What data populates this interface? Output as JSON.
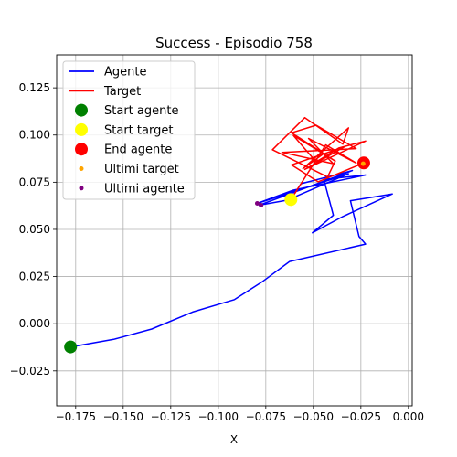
{
  "chart_data": {
    "type": "line",
    "title": "Success - Episodio 758",
    "xlabel": "X",
    "ylabel": "",
    "xlim": [
      -0.185,
      0.002
    ],
    "ylim": [
      -0.0435,
      0.1425
    ],
    "grid": true,
    "legend_position": "top-left",
    "x_ticks": [
      -0.175,
      -0.15,
      -0.125,
      -0.1,
      -0.075,
      -0.05,
      -0.025,
      0.0
    ],
    "x_tick_labels": [
      "−0.175",
      "−0.150",
      "−0.125",
      "−0.100",
      "−0.075",
      "−0.050",
      "−0.025",
      "0.000"
    ],
    "y_ticks": [
      -0.025,
      0.0,
      0.025,
      0.05,
      0.075,
      0.1,
      0.125
    ],
    "y_tick_labels": [
      "−0.025",
      "0.000",
      "0.025",
      "0.050",
      "0.075",
      "0.100",
      "0.125"
    ],
    "series": [
      {
        "name": "Agente",
        "kind": "line",
        "color": "#0000ff",
        "points": [
          [
            -0.1777,
            -0.0123
          ],
          [
            -0.155,
            -0.0083
          ],
          [
            -0.135,
            -0.0028
          ],
          [
            -0.1135,
            0.0062
          ],
          [
            -0.0915,
            0.0128
          ],
          [
            -0.0765,
            0.0225
          ],
          [
            -0.0625,
            0.033
          ],
          [
            -0.0225,
            0.0422
          ],
          [
            -0.026,
            0.0462
          ],
          [
            -0.0305,
            0.0652
          ],
          [
            -0.0085,
            0.0688
          ],
          [
            -0.0345,
            0.0568
          ],
          [
            -0.0505,
            0.0482
          ],
          [
            -0.0395,
            0.0575
          ],
          [
            -0.0445,
            0.0765
          ],
          [
            -0.0225,
            0.0788
          ],
          [
            -0.0605,
            0.0708
          ],
          [
            -0.0795,
            0.0638
          ],
          [
            -0.0315,
            0.0795
          ],
          [
            -0.0615,
            0.0665
          ],
          [
            -0.0565,
            0.0742
          ],
          [
            -0.0295,
            0.0812
          ],
          [
            -0.0785,
            0.0628
          ],
          [
            -0.0618,
            0.0658
          ]
        ]
      },
      {
        "name": "Target",
        "kind": "line",
        "color": "#ff0000",
        "points": [
          [
            -0.0618,
            0.0658
          ],
          [
            -0.0435,
            0.0948
          ],
          [
            -0.0275,
            0.0852
          ],
          [
            -0.0525,
            0.0982
          ],
          [
            -0.0395,
            0.0848
          ],
          [
            -0.0665,
            0.0908
          ],
          [
            -0.0275,
            0.0928
          ],
          [
            -0.0485,
            0.1052
          ],
          [
            -0.0615,
            0.1012
          ],
          [
            -0.0445,
            0.0902
          ],
          [
            -0.0555,
            0.0822
          ],
          [
            -0.0315,
            0.1038
          ],
          [
            -0.0345,
            0.0952
          ],
          [
            -0.0545,
            0.1092
          ],
          [
            -0.0715,
            0.0922
          ],
          [
            -0.0425,
            0.0778
          ],
          [
            -0.0385,
            0.0862
          ],
          [
            -0.0605,
            0.0998
          ],
          [
            -0.0485,
            0.0858
          ],
          [
            -0.0365,
            0.0932
          ],
          [
            -0.0225,
            0.0968
          ],
          [
            -0.0545,
            0.0818
          ],
          [
            -0.0335,
            0.0938
          ],
          [
            -0.0615,
            0.0842
          ],
          [
            -0.0475,
            0.0752
          ],
          [
            -0.0235,
            0.0852
          ]
        ]
      },
      {
        "name": "Start agente",
        "kind": "marker",
        "color": "#008000",
        "size": 7,
        "points": [
          [
            -0.1777,
            -0.0123
          ]
        ]
      },
      {
        "name": "Start target",
        "kind": "marker",
        "color": "#ffff00",
        "size": 7,
        "points": [
          [
            -0.0618,
            0.0658
          ]
        ]
      },
      {
        "name": "End agente",
        "kind": "marker",
        "color": "#ff0000",
        "size": 7,
        "points": [
          [
            -0.0235,
            0.0852
          ]
        ]
      },
      {
        "name": "Ultimi target",
        "kind": "marker",
        "color": "#ffa500",
        "size": 2.5,
        "points": [
          [
            -0.0238,
            0.0848
          ]
        ]
      },
      {
        "name": "Ultimi agente",
        "kind": "marker",
        "color": "#800080",
        "size": 2.5,
        "points": [
          [
            -0.0795,
            0.0638
          ],
          [
            -0.0775,
            0.0628
          ]
        ]
      }
    ]
  }
}
